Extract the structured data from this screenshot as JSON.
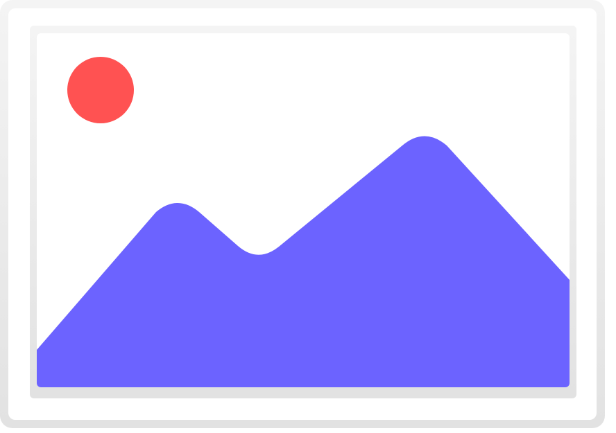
{
  "image_placeholder": {
    "icon": "image-placeholder-icon",
    "colors": {
      "outer_frame_top": "#f4f4f4",
      "outer_frame_bottom": "#e2e2e2",
      "outer_inner_fill": "#ffffff",
      "inner_frame": "#e9e9e9",
      "canvas": "#ffffff",
      "sun": "#ff5252",
      "mountains": "#6c63ff"
    },
    "elements": {
      "sun": "sun-icon",
      "mountains": "mountains-icon"
    }
  }
}
